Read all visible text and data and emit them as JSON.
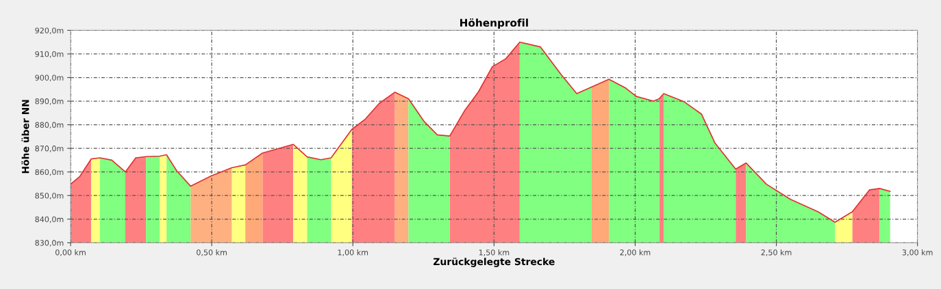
{
  "chart_data": {
    "type": "area",
    "title": "Höhenprofil",
    "xlabel": "Zurückgelegte Strecke",
    "ylabel": "Höhe über NN",
    "x": [
      0.0,
      0.032,
      0.073,
      0.104,
      0.146,
      0.194,
      0.231,
      0.267,
      0.316,
      0.34,
      0.376,
      0.425,
      0.498,
      0.571,
      0.619,
      0.68,
      0.789,
      0.838,
      0.887,
      0.923,
      0.996,
      1.044,
      1.093,
      1.149,
      1.197,
      1.251,
      1.299,
      1.343,
      1.397,
      1.445,
      1.494,
      1.542,
      1.591,
      1.664,
      1.737,
      1.793,
      1.846,
      1.907,
      1.967,
      2.004,
      2.065,
      2.085,
      2.101,
      2.174,
      2.235,
      2.283,
      2.356,
      2.393,
      2.465,
      2.55,
      2.648,
      2.708,
      2.769,
      2.83,
      2.866,
      2.903
    ],
    "series": [
      {
        "color": "#ff8080",
        "values": [
          854.8,
          858,
          865.5,
          null,
          null,
          860,
          866,
          866.5,
          null,
          null,
          null,
          null,
          null,
          null,
          null,
          868,
          871.7,
          null,
          null,
          null,
          878,
          882.4,
          889,
          893.8,
          null,
          null,
          null,
          875.2,
          886.2,
          894,
          904.6,
          908,
          915,
          null,
          null,
          null,
          null,
          null,
          null,
          null,
          null,
          891,
          893.2,
          null,
          null,
          null,
          861.2,
          863.8,
          null,
          null,
          null,
          null,
          843.1,
          852.4,
          853,
          null
        ]
      },
      {
        "color": "#ffff80",
        "values": [
          null,
          null,
          865.5,
          866,
          null,
          null,
          null,
          null,
          866.7,
          867.3,
          null,
          null,
          null,
          861.8,
          863,
          null,
          871.7,
          866.4,
          null,
          866,
          878,
          null,
          null,
          null,
          null,
          null,
          null,
          null,
          null,
          null,
          null,
          null,
          null,
          null,
          null,
          null,
          null,
          null,
          null,
          null,
          null,
          null,
          null,
          null,
          null,
          null,
          null,
          null,
          null,
          null,
          null,
          838.7,
          843.1,
          null,
          null,
          null
        ]
      },
      {
        "color": "#ffb080",
        "values": [
          null,
          null,
          null,
          null,
          null,
          null,
          null,
          null,
          null,
          null,
          null,
          854,
          858.3,
          861.8,
          null,
          null,
          null,
          null,
          null,
          null,
          null,
          null,
          null,
          893.8,
          891,
          null,
          null,
          null,
          null,
          null,
          null,
          null,
          null,
          null,
          null,
          null,
          null,
          null,
          null,
          null,
          null,
          null,
          null,
          null,
          null,
          null,
          null,
          null,
          null,
          null,
          null,
          null,
          null,
          null,
          null,
          null
        ]
      },
      {
        "color": "#ffa878",
        "values": [
          null,
          null,
          null,
          null,
          null,
          null,
          null,
          null,
          null,
          null,
          null,
          null,
          null,
          null,
          863,
          868,
          null,
          null,
          null,
          null,
          null,
          null,
          null,
          null,
          null,
          null,
          null,
          null,
          null,
          null,
          null,
          null,
          null,
          null,
          null,
          null,
          896,
          899.3,
          null,
          null,
          null,
          null,
          null,
          null,
          null,
          null,
          null,
          null,
          null,
          null,
          null,
          null,
          null,
          null,
          null,
          null
        ]
      },
      {
        "color": "#80ff80",
        "values": [
          null,
          null,
          null,
          866,
          865,
          860,
          null,
          null,
          null,
          867.3,
          860.5,
          854,
          null,
          null,
          null,
          null,
          null,
          866.4,
          865.2,
          866,
          null,
          null,
          null,
          null,
          891,
          881.6,
          875.7,
          875.2,
          null,
          null,
          null,
          null,
          915,
          913,
          901.4,
          893.2,
          896,
          null,
          null,
          null,
          null,
          null,
          893.2,
          889.7,
          884.5,
          872.2,
          861.2,
          null,
          null,
          null,
          null,
          null,
          null,
          null,
          null,
          null
        ]
      },
      {
        "color": "#80ff80",
        "values": [
          null,
          null,
          null,
          null,
          null,
          null,
          null,
          866.5,
          866.7,
          null,
          null,
          null,
          null,
          null,
          null,
          null,
          null,
          null,
          null,
          null,
          null,
          null,
          null,
          null,
          null,
          null,
          null,
          null,
          null,
          null,
          null,
          null,
          null,
          null,
          null,
          null,
          null,
          899.3,
          895.5,
          892,
          890,
          891,
          null,
          null,
          null,
          null,
          null,
          863.8,
          854.8,
          848.4,
          843.1,
          838.7,
          null,
          null,
          853,
          851.8
        ]
      },
      {
        "type": "line",
        "color": "#e03030",
        "values": [
          854.8,
          858,
          865.5,
          866,
          865,
          860,
          866,
          866.5,
          866.7,
          867.3,
          860.5,
          854,
          858.3,
          861.8,
          863,
          868,
          871.7,
          866.4,
          865.2,
          866,
          878,
          882.4,
          889,
          893.8,
          891,
          881.6,
          875.7,
          875.2,
          886.2,
          894,
          904.6,
          908,
          915,
          913,
          901.4,
          893.2,
          896,
          899.3,
          895.5,
          892,
          890,
          891,
          893.2,
          889.7,
          884.5,
          872.2,
          861.2,
          863.8,
          854.8,
          848.4,
          843.1,
          838.7,
          843.1,
          852.4,
          853,
          851.8
        ]
      }
    ],
    "xlim": [
      0,
      3.0
    ],
    "ylim": [
      830,
      920
    ],
    "xticks": [
      {
        "value": 0,
        "label": "0,00 km"
      },
      {
        "value": 0.5,
        "label": "0,50 km"
      },
      {
        "value": 1.0,
        "label": "1,00 km"
      },
      {
        "value": 1.5,
        "label": "1,50 km"
      },
      {
        "value": 2.0,
        "label": "2,00 km"
      },
      {
        "value": 2.5,
        "label": "2,50 km"
      },
      {
        "value": 3.0,
        "label": "3,00 km"
      }
    ],
    "yticks": [
      {
        "value": 830,
        "label": "830,0m"
      },
      {
        "value": 840,
        "label": "840,0m"
      },
      {
        "value": 850,
        "label": "850,0m"
      },
      {
        "value": 860,
        "label": "860,0m"
      },
      {
        "value": 870,
        "label": "870,0m"
      },
      {
        "value": 880,
        "label": "880,0m"
      },
      {
        "value": 890,
        "label": "890,0m"
      },
      {
        "value": 900,
        "label": "900,0m"
      },
      {
        "value": 910,
        "label": "910,0m"
      },
      {
        "value": 920,
        "label": "920,0m"
      }
    ],
    "grid": true
  }
}
